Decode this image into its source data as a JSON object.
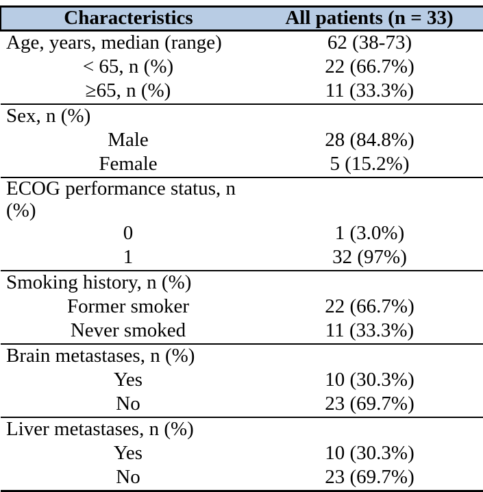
{
  "colors": {
    "header_bg": "#b8cce4",
    "rule": "#000000",
    "text": "#000000"
  },
  "table": {
    "header": {
      "col1": "Characteristics",
      "col2": "All patients (n = 33)"
    },
    "groups": [
      {
        "label": "Age, years, median (range)",
        "value": "62 (38-73)",
        "rows": [
          {
            "label": "< 65, n (%)",
            "value": "22 (66.7%)"
          },
          {
            "label": "≥65, n (%)",
            "value": "11 (33.3%)"
          }
        ]
      },
      {
        "label": "Sex, n (%)",
        "value": "",
        "rows": [
          {
            "label": "Male",
            "value": "28 (84.8%)"
          },
          {
            "label": "Female",
            "value": "5 (15.2%)"
          }
        ]
      },
      {
        "label": "ECOG performance status, n (%)",
        "value": "",
        "rows": [
          {
            "label": "0",
            "value": "1 (3.0%)"
          },
          {
            "label": "1",
            "value": "32 (97%)"
          }
        ]
      },
      {
        "label": "Smoking history, n (%)",
        "value": "",
        "rows": [
          {
            "label": "Former smoker",
            "value": "22 (66.7%)"
          },
          {
            "label": "Never smoked",
            "value": "11 (33.3%)"
          }
        ]
      },
      {
        "label": "Brain metastases, n (%)",
        "value": "",
        "rows": [
          {
            "label": "Yes",
            "value": "10 (30.3%)"
          },
          {
            "label": "No",
            "value": "23 (69.7%)"
          }
        ]
      },
      {
        "label": "Liver metastases, n (%)",
        "value": "",
        "rows": [
          {
            "label": "Yes",
            "value": "10 (30.3%)"
          },
          {
            "label": "No",
            "value": "23 (69.7%)"
          }
        ]
      }
    ]
  }
}
